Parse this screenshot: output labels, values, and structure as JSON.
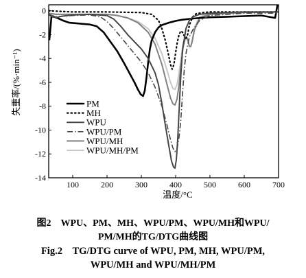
{
  "chart_data": {
    "type": "line",
    "title": "",
    "xlabel": "温度/°C",
    "ylabel": "失重率/(%·min⁻¹)",
    "xlim": [
      30,
      700
    ],
    "ylim": [
      -14,
      0.5
    ],
    "xticks": [
      100,
      200,
      300,
      400,
      500,
      600,
      700
    ],
    "yticks": [
      0,
      -2,
      -4,
      -6,
      -8,
      -10,
      -12,
      -14
    ],
    "grid": false,
    "legend_position": "left-bottom",
    "series": [
      {
        "name": "PM",
        "style": "solid-thick",
        "color": "#000000",
        "x": [
          32,
          38,
          45,
          55,
          70,
          90,
          110,
          130,
          150,
          170,
          190,
          210,
          230,
          250,
          265,
          280,
          290,
          298,
          305,
          310,
          315,
          320,
          325,
          330,
          340,
          350,
          360,
          380,
          400,
          420,
          450,
          500,
          550,
          600,
          650,
          690,
          700
        ],
        "y": [
          -2.4,
          -0.5,
          -0.5,
          -0.6,
          -0.8,
          -1.0,
          -1.05,
          -1.1,
          -1.15,
          -1.3,
          -1.8,
          -2.6,
          -3.4,
          -4.4,
          -5.2,
          -6.0,
          -6.6,
          -7.0,
          -7.15,
          -6.7,
          -5.6,
          -4.3,
          -3.2,
          -2.5,
          -1.8,
          -1.4,
          -1.2,
          -1.0,
          -0.85,
          -0.75,
          -0.65,
          -0.55,
          -0.5,
          -0.45,
          -0.4,
          -0.6,
          1.0
        ]
      },
      {
        "name": "MH",
        "style": "dotted",
        "color": "#000000",
        "x": [
          30,
          100,
          200,
          300,
          330,
          350,
          360,
          370,
          380,
          385,
          390,
          395,
          400,
          405,
          410,
          415,
          420,
          425,
          430,
          435,
          440,
          450,
          460,
          480,
          500,
          550,
          600,
          700
        ],
        "y": [
          0,
          -0.1,
          -0.1,
          -0.15,
          -0.3,
          -0.8,
          -1.5,
          -2.5,
          -3.8,
          -4.5,
          -4.9,
          -4.5,
          -3.5,
          -2.6,
          -2.0,
          -1.7,
          -1.8,
          -2.1,
          -2.3,
          -2.0,
          -1.2,
          -0.5,
          -0.25,
          -0.15,
          -0.1,
          -0.1,
          -0.1,
          -0.1
        ]
      },
      {
        "name": "WPU",
        "style": "solid",
        "color": "#454545",
        "x": [
          30,
          40,
          55,
          70,
          100,
          150,
          200,
          220,
          240,
          260,
          280,
          300,
          320,
          340,
          350,
          360,
          370,
          380,
          388,
          394,
          398,
          402,
          406,
          410,
          415,
          420,
          430,
          440,
          450,
          470,
          500,
          550,
          600,
          700
        ],
        "y": [
          -0.3,
          -0.5,
          -0.55,
          -0.45,
          -0.35,
          -0.3,
          -0.4,
          -0.7,
          -1.3,
          -2.0,
          -2.6,
          -3.2,
          -4.0,
          -5.2,
          -6.2,
          -7.8,
          -9.6,
          -11.3,
          -12.6,
          -13.1,
          -13.2,
          -12.5,
          -10.8,
          -8.4,
          -5.5,
          -3.3,
          -1.5,
          -0.8,
          -0.5,
          -0.3,
          -0.2,
          -0.15,
          -0.1,
          -0.1
        ]
      },
      {
        "name": "WPU/PM",
        "style": "dashdot",
        "color": "#454545",
        "x": [
          30,
          50,
          100,
          150,
          180,
          200,
          220,
          240,
          260,
          280,
          300,
          320,
          340,
          360,
          375,
          385,
          392,
          398,
          404,
          410,
          415,
          420,
          425,
          430,
          440,
          450,
          470,
          500,
          600,
          700
        ],
        "y": [
          -0.3,
          -0.5,
          -0.4,
          -0.35,
          -0.5,
          -0.9,
          -1.5,
          -2.2,
          -2.9,
          -3.6,
          -4.3,
          -5.2,
          -6.4,
          -8.0,
          -9.6,
          -10.8,
          -11.5,
          -11.8,
          -11.6,
          -10.6,
          -9.2,
          -7.0,
          -5.0,
          -3.6,
          -2.2,
          -1.6,
          -0.8,
          -0.4,
          -0.2,
          -0.2
        ]
      },
      {
        "name": "WPU/MH",
        "style": "solid",
        "color": "#808080",
        "x": [
          30,
          50,
          100,
          150,
          200,
          230,
          260,
          290,
          320,
          340,
          360,
          375,
          385,
          392,
          398,
          404,
          410,
          416,
          422,
          428,
          432,
          436,
          440,
          444,
          448,
          455,
          470,
          500,
          600,
          700
        ],
        "y": [
          -0.2,
          -0.3,
          -0.3,
          -0.3,
          -0.3,
          -0.4,
          -0.6,
          -1.0,
          -1.8,
          -2.8,
          -4.5,
          -6.2,
          -7.3,
          -7.8,
          -7.9,
          -7.4,
          -6.2,
          -4.5,
          -3.0,
          -2.3,
          -2.2,
          -2.5,
          -3.0,
          -3.0,
          -2.6,
          -1.6,
          -0.6,
          -0.3,
          -0.15,
          -0.1
        ]
      },
      {
        "name": "WPU/MH/PM",
        "style": "solid",
        "color": "#c8c8c8",
        "x": [
          30,
          50,
          100,
          150,
          200,
          230,
          260,
          290,
          320,
          340,
          360,
          375,
          385,
          392,
          398,
          404,
          410,
          416,
          422,
          428,
          432,
          436,
          440,
          444,
          448,
          455,
          470,
          500,
          600,
          700
        ],
        "y": [
          -0.2,
          -0.3,
          -0.3,
          -0.3,
          -0.3,
          -0.4,
          -0.6,
          -0.9,
          -1.5,
          -2.3,
          -3.6,
          -5.0,
          -6.0,
          -6.5,
          -6.6,
          -6.2,
          -5.2,
          -3.9,
          -2.7,
          -2.2,
          -2.3,
          -2.6,
          -3.0,
          -3.0,
          -2.5,
          -1.4,
          -0.5,
          -0.2,
          -0.1,
          -0.1
        ]
      }
    ]
  },
  "caption": {
    "cn_line1": "图2　WPU、PM、MH、WPU/PM、WPU/MH和WPU/",
    "cn_line2": "PM/MH的TG/DTG曲线图",
    "en_line1": "Fig.2　TG/DTG curve of WPU, PM, MH, WPU/PM,",
    "en_line2": "WPU/MH and WPU/MH/PM"
  }
}
